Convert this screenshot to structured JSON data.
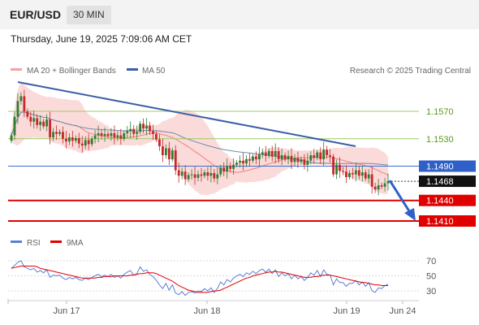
{
  "header": {
    "symbol": "EUR/USD",
    "timeframe": "30 MIN",
    "datetime": "Thursday, June 19, 2025 7:09:06 AM CET"
  },
  "chart_data": {
    "type": "candlestick",
    "legend": {
      "bollinger": "MA 20 + Bollinger Bands",
      "ma50": "MA 50",
      "credit": "Research © 2025 Trading Central"
    },
    "colors": {
      "up": "#2e7d32",
      "down": "#c62828",
      "band": "#fbdada",
      "ma20": "#f08080",
      "ma50": "#6b8dad",
      "trendline": "#3b5ea8",
      "target_line": "#e00000",
      "pivot_line": "#3d6fd1",
      "resistance_line": "#9ccc65",
      "rsi": "#5b7fd4",
      "rsi_ma": "#e00000"
    },
    "x_tick_labels": [
      "Jun 17",
      "Jun 18",
      "Jun 19",
      "Jun 24"
    ],
    "y_range": [
      1.4,
      1.1612
    ],
    "levels": [
      {
        "value": "1.1570",
        "type": "resistance"
      },
      {
        "value": "1.1530",
        "type": "resistance"
      },
      {
        "value": "1.1490",
        "type": "pivot"
      },
      {
        "value": "1.1468",
        "type": "last"
      },
      {
        "value": "1.1440",
        "type": "target"
      },
      {
        "value": "1.1410",
        "type": "target"
      }
    ],
    "closes": [
      1.1535,
      1.1562,
      1.1585,
      1.1592,
      1.157,
      1.1562,
      1.1555,
      1.156,
      1.155,
      1.1555,
      1.1548,
      1.1558,
      1.1532,
      1.154,
      1.1537,
      1.154,
      1.153,
      1.1526,
      1.1532,
      1.1527,
      1.1531,
      1.1523,
      1.152,
      1.1528,
      1.1522,
      1.153,
      1.1535,
      1.1538,
      1.1534,
      1.1537,
      1.1534,
      1.1538,
      1.1532,
      1.1535,
      1.153,
      1.1538,
      1.1541,
      1.1544,
      1.1537,
      1.154,
      1.1552,
      1.1545,
      1.1549,
      1.1541,
      1.1537,
      1.1529,
      1.1519,
      1.1506,
      1.1516,
      1.15,
      1.1513,
      1.1484,
      1.1476,
      1.1482,
      1.1471,
      1.1477,
      1.1478,
      1.1473,
      1.1478,
      1.1476,
      1.1481,
      1.1476,
      1.148,
      1.1472,
      1.1478,
      1.1488,
      1.1482,
      1.149,
      1.1486,
      1.1492,
      1.1495,
      1.1498,
      1.1494,
      1.15,
      1.1498,
      1.1504,
      1.15,
      1.1507,
      1.151,
      1.1505,
      1.1512,
      1.1504,
      1.1512,
      1.15,
      1.1506,
      1.15,
      1.1505,
      1.1496,
      1.1502,
      1.1496,
      1.15,
      1.1492,
      1.1498,
      1.1506,
      1.1502,
      1.151,
      1.15,
      1.1514,
      1.1506,
      1.1504,
      1.1478,
      1.1492,
      1.1483,
      1.1482,
      1.1474,
      1.148,
      1.1478,
      1.1484,
      1.1476,
      1.1481,
      1.1472,
      1.1478,
      1.146,
      1.1456,
      1.1462,
      1.146,
      1.1465,
      1.1468
    ],
    "rsi": {
      "label": "RSI",
      "ma_label": "9MA",
      "levels": [
        70,
        50,
        30
      ],
      "values": [
        60,
        64,
        68,
        70,
        62,
        60,
        58,
        60,
        55,
        57,
        54,
        58,
        48,
        51,
        50,
        51,
        47,
        45,
        48,
        46,
        48,
        45,
        44,
        47,
        45,
        48,
        50,
        52,
        49,
        51,
        49,
        52,
        48,
        50,
        47,
        52,
        55,
        57,
        51,
        53,
        62,
        56,
        58,
        52,
        49,
        44,
        38,
        33,
        40,
        31,
        38,
        27,
        25,
        29,
        24,
        28,
        29,
        27,
        30,
        29,
        33,
        30,
        34,
        28,
        33,
        42,
        38,
        45,
        42,
        47,
        50,
        52,
        49,
        54,
        52,
        56,
        53,
        57,
        59,
        55,
        59,
        53,
        58,
        49,
        54,
        50,
        53,
        46,
        51,
        46,
        49,
        44,
        48,
        54,
        51,
        57,
        49,
        58,
        52,
        51,
        38,
        46,
        41,
        41,
        36,
        40,
        40,
        44,
        38,
        42,
        36,
        41,
        30,
        28,
        34,
        33,
        37,
        39
      ],
      "ma_values": [
        60,
        61,
        62,
        63,
        63,
        63,
        63,
        63,
        62,
        60,
        59,
        58,
        57,
        56,
        55,
        54,
        53,
        52,
        51,
        50,
        49,
        48,
        47,
        47,
        47,
        47,
        47,
        48,
        48,
        49,
        49,
        49,
        50,
        50,
        50,
        50,
        50,
        51,
        51,
        52,
        53,
        53,
        54,
        54,
        54,
        53,
        51,
        49,
        47,
        45,
        43,
        40,
        37,
        35,
        33,
        31,
        30,
        29,
        28,
        28,
        28,
        28,
        29,
        30,
        30,
        31,
        33,
        35,
        37,
        39,
        41,
        43,
        45,
        47,
        48,
        50,
        51,
        52,
        53,
        54,
        55,
        55,
        56,
        55,
        55,
        54,
        53,
        52,
        51,
        50,
        49,
        48,
        48,
        48,
        49,
        49,
        50,
        51,
        51,
        51,
        50,
        49,
        48,
        47,
        46,
        45,
        44,
        43,
        42,
        41,
        41,
        40,
        39,
        38,
        38,
        37,
        37,
        37
      ]
    }
  }
}
